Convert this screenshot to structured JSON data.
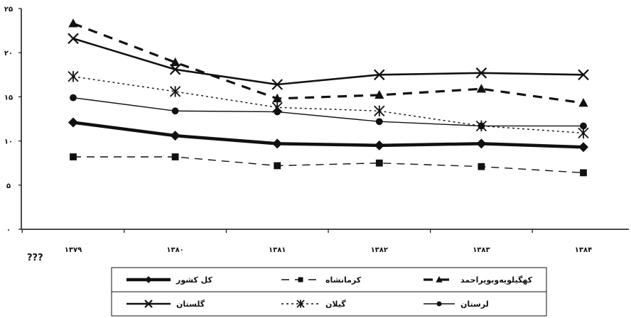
{
  "chart_data": {
    "type": "line",
    "categories": [
      "۱۳۷۹",
      "۱۳۸۰",
      "۱۳۸۱",
      "۱۳۸۲",
      "۱۳۸۳",
      "۱۳۸۴"
    ],
    "y_ticks": [
      "۰",
      "۵",
      "۱۰",
      "۱۵",
      "۲۰",
      "۲۵"
    ],
    "ylim": [
      0,
      25
    ],
    "grid": false,
    "legend_position": "bottom",
    "note": "???",
    "series": [
      {
        "name": "کهگیلویه‌وبویراحمد",
        "values": [
          23.3,
          18.9,
          14.8,
          15.2,
          15.9,
          14.3
        ],
        "color": "#111111",
        "style": "dashed",
        "marker": "triangle"
      },
      {
        "name": "گلستان",
        "values": [
          21.6,
          18.1,
          16.4,
          17.5,
          17.7,
          17.5
        ],
        "color": "#111111",
        "style": "solid",
        "marker": "x"
      },
      {
        "name": "گیلان",
        "values": [
          17.3,
          15.6,
          13.8,
          13.4,
          11.7,
          10.9
        ],
        "color": "#111111",
        "style": "dotted",
        "marker": "asterisk"
      },
      {
        "name": "لرستان",
        "values": [
          14.9,
          13.4,
          13.3,
          12.2,
          11.7,
          11.7
        ],
        "color": "#111111",
        "style": "solid-thin",
        "marker": "circle"
      },
      {
        "name": "کل کشور",
        "values": [
          12.1,
          10.6,
          9.7,
          9.5,
          9.7,
          9.3
        ],
        "color": "#111111",
        "style": "solid-thick",
        "marker": "diamond"
      },
      {
        "name": "کرمانشاه",
        "values": [
          8.2,
          8.2,
          7.2,
          7.5,
          7.1,
          6.4
        ],
        "color": "#111111",
        "style": "dashed-long",
        "marker": "square"
      }
    ]
  }
}
